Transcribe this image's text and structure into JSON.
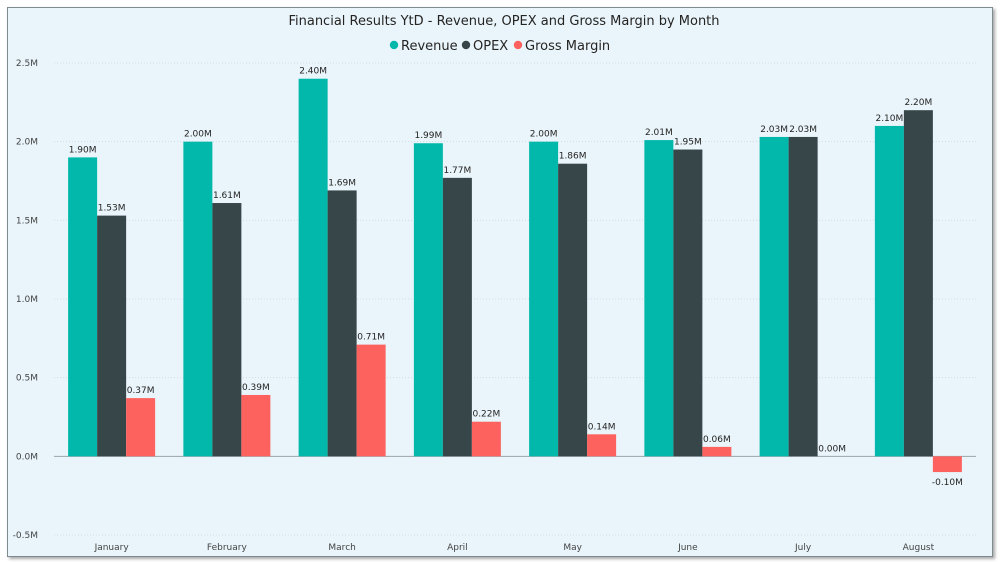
{
  "chart_data": {
    "type": "bar",
    "title": "Financial Results YtD - Revenue, OPEX and Gross Margin by Month",
    "categories": [
      "January",
      "February",
      "March",
      "April",
      "May",
      "June",
      "July",
      "August"
    ],
    "series": [
      {
        "name": "Revenue",
        "color": "#01b8aa",
        "values": [
          1.9,
          2.0,
          2.4,
          1.99,
          2.0,
          2.01,
          2.03,
          2.1
        ],
        "labels": [
          "1.90M",
          "2.00M",
          "2.40M",
          "1.99M",
          "2.00M",
          "2.01M",
          "2.03M",
          "2.10M"
        ]
      },
      {
        "name": "OPEX",
        "color": "#374649",
        "values": [
          1.53,
          1.61,
          1.69,
          1.77,
          1.86,
          1.95,
          2.03,
          2.2
        ],
        "labels": [
          "1.53M",
          "1.61M",
          "1.69M",
          "1.77M",
          "1.86M",
          "1.95M",
          "2.03M",
          "2.20M"
        ]
      },
      {
        "name": "Gross Margin",
        "color": "#fd625e",
        "values": [
          0.37,
          0.39,
          0.71,
          0.22,
          0.14,
          0.06,
          0.0,
          -0.1
        ],
        "labels": [
          "0.37M",
          "0.39M",
          "0.71M",
          "0.22M",
          "0.14M",
          "0.06M",
          "0.00M",
          "-0.10M"
        ]
      }
    ],
    "y_unit": "M",
    "ylim": [
      -0.5,
      2.5
    ],
    "yticks": [
      -0.5,
      0.0,
      0.5,
      1.0,
      1.5,
      2.0,
      2.5
    ],
    "ytick_labels": [
      "-0.5M",
      "0.0M",
      "0.5M",
      "1.0M",
      "1.5M",
      "2.0M",
      "2.5M"
    ],
    "xlabel": "",
    "ylabel": "",
    "legend_position": "top-center",
    "grid": true
  }
}
